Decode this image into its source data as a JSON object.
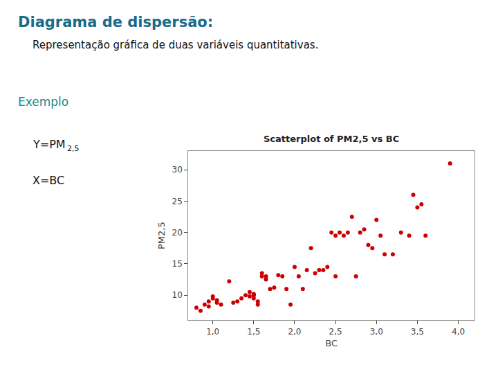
{
  "chart_data": {
    "type": "scatter",
    "title": "Scatterplot of PM2,5 vs BC",
    "xlabel": "BC",
    "ylabel": "PM2,5",
    "annotations": [
      "Diagrama de dispersão:",
      "Representação gráfica de duas variáveis quantitativas.",
      "Exemplo",
      "Y=PM",
      "2,5",
      "X=BC"
    ],
    "color": "#cc0000",
    "marker": "circle",
    "grid": false,
    "xlim": [
      0.7,
      4.2
    ],
    "ylim": [
      6,
      33
    ],
    "xticks": [
      {
        "value": 1.0,
        "label": "1,0"
      },
      {
        "value": 1.5,
        "label": "1,5"
      },
      {
        "value": 2.0,
        "label": "2,0"
      },
      {
        "value": 2.5,
        "label": "2,5"
      },
      {
        "value": 3.0,
        "label": "3,0"
      },
      {
        "value": 3.5,
        "label": "3,5"
      },
      {
        "value": 4.0,
        "label": "4,0"
      }
    ],
    "yticks": [
      10,
      15,
      20,
      25,
      30
    ],
    "x": [
      0.8,
      0.85,
      0.9,
      0.95,
      0.95,
      1.0,
      1.0,
      1.05,
      1.05,
      1.1,
      1.2,
      1.25,
      1.3,
      1.35,
      1.4,
      1.45,
      1.45,
      1.5,
      1.5,
      1.5,
      1.5,
      1.55,
      1.55,
      1.6,
      1.6,
      1.65,
      1.65,
      1.7,
      1.75,
      1.8,
      1.85,
      1.9,
      1.95,
      2.0,
      2.05,
      2.1,
      2.15,
      2.2,
      2.25,
      2.3,
      2.35,
      2.4,
      2.45,
      2.5,
      2.5,
      2.55,
      2.6,
      2.65,
      2.7,
      2.75,
      2.8,
      2.85,
      2.9,
      2.95,
      3.0,
      3.05,
      3.1,
      3.2,
      3.3,
      3.4,
      3.45,
      3.5,
      3.55,
      3.6,
      3.9
    ],
    "values": [
      8.0,
      7.5,
      8.5,
      9.0,
      8.2,
      9.5,
      9.8,
      9.2,
      8.8,
      8.5,
      12.2,
      8.8,
      9.0,
      9.5,
      10.0,
      9.8,
      10.5,
      10.0,
      10.2,
      9.5,
      10.0,
      9.0,
      8.5,
      13.0,
      13.5,
      12.5,
      13.0,
      11.0,
      11.2,
      13.2,
      13.0,
      11.0,
      8.5,
      14.5,
      13.0,
      11.0,
      14.0,
      17.5,
      13.5,
      14.0,
      14.0,
      14.5,
      20.0,
      19.5,
      13.0,
      20.0,
      19.5,
      20.0,
      22.5,
      13.0,
      20.0,
      20.5,
      18.0,
      17.5,
      22.0,
      19.5,
      16.5,
      16.5,
      20.0,
      19.5,
      26.0,
      24.0,
      24.5,
      19.5,
      31.0
    ]
  }
}
